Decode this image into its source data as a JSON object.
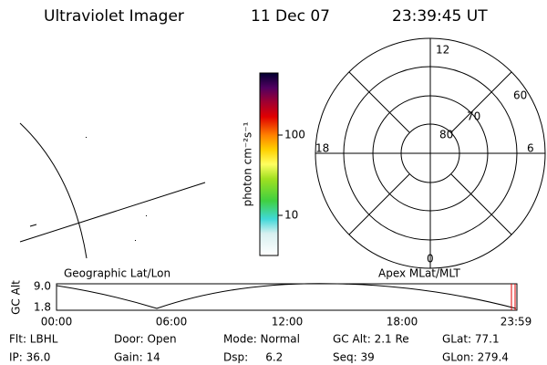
{
  "header": {
    "title": "Ultraviolet Imager",
    "date": "11 Dec 07",
    "time": "23:39:45 UT"
  },
  "colorbar": {
    "label": "photon cm⁻²s⁻¹",
    "ticks": [
      "100",
      "10"
    ]
  },
  "polar": {
    "mlt_labels": [
      "12",
      "18",
      "6",
      "0"
    ],
    "lat_labels": [
      "60",
      "70",
      "80"
    ]
  },
  "timeline": {
    "y_label": "GC Alt",
    "y_ticks": [
      "9.0",
      "1.8"
    ],
    "left_label": "Geographic Lat/Lon",
    "right_label": "Apex MLat/MLT",
    "x_ticks": [
      "00:00",
      "06:00",
      "12:00",
      "18:00",
      "23:59"
    ]
  },
  "info": {
    "rows": [
      [
        "Flt: LBHL",
        "Door: Open",
        "Mode: Normal",
        "GC Alt: 2.1 Re",
        "GLat: 77.1"
      ],
      [
        "IP: 36.0",
        "Gain: 14",
        "Dsp:     6.2",
        "Seq: 39",
        "GLon: 279.4"
      ]
    ]
  }
}
